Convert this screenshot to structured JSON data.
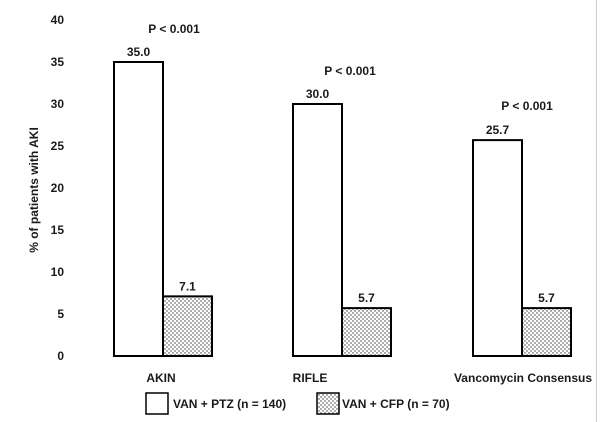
{
  "chart_data": {
    "type": "bar",
    "title": "",
    "xlabel": "",
    "ylabel": "% of patients with AKI",
    "ylim": [
      0,
      40
    ],
    "yticks": [
      0,
      5,
      10,
      15,
      20,
      25,
      30,
      35,
      40
    ],
    "categories": [
      "AKIN",
      "RIFLE",
      "Vancomycin Consensus"
    ],
    "series": [
      {
        "name": "VAN + PTZ (n = 140)",
        "values": [
          35.0,
          30.0,
          25.7
        ],
        "labels": [
          "35.0",
          "30.0",
          "25.7"
        ],
        "fill": "white"
      },
      {
        "name": "VAN + CFP (n = 70)",
        "values": [
          7.1,
          5.7,
          5.7
        ],
        "labels": [
          "7.1",
          "5.7",
          "5.7"
        ],
        "fill": "dotted"
      }
    ],
    "annotations": [
      "P < 0.001",
      "P < 0.001",
      "P < 0.001"
    ],
    "legend_position": "bottom",
    "grid": false
  }
}
